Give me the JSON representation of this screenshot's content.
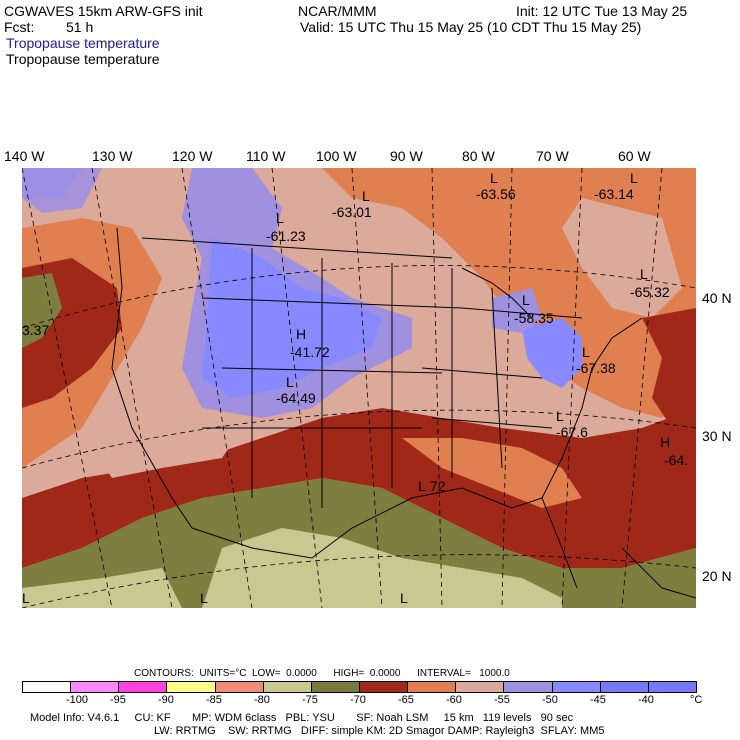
{
  "header": {
    "model_line": "CGWAVES 15km ARW-GFS init",
    "fcst_label": "Fcst:",
    "fcst_value": "51 h",
    "org": "NCAR/MMM",
    "init": "Init: 12 UTC Tue 13 May 25",
    "valid": "Valid: 15 UTC Thu 15 May 25 (10 CDT Thu 15 May 25)",
    "field1": "Tropopause temperature",
    "field2": "Tropopause temperature"
  },
  "longitude_labels": [
    "140 W",
    "130 W",
    "120 W",
    "110 W",
    "100 W",
    "90 W",
    "80 W",
    "70 W",
    "60 W"
  ],
  "latitude_labels": [
    "40 N",
    "30 N",
    "20 N"
  ],
  "map_annotations": [
    {
      "kind": "L",
      "text": "L"
    },
    {
      "kind": "value",
      "text": "-63.01"
    },
    {
      "kind": "L",
      "text": "L"
    },
    {
      "kind": "value",
      "text": "-63.56"
    },
    {
      "kind": "L",
      "text": "L"
    },
    {
      "kind": "value",
      "text": "-63.14"
    },
    {
      "kind": "L",
      "text": "L"
    },
    {
      "kind": "value",
      "text": "-61.23"
    },
    {
      "kind": "L",
      "text": "L"
    },
    {
      "kind": "value",
      "text": "-65.32"
    },
    {
      "kind": "value",
      "text": "3.37"
    },
    {
      "kind": "L",
      "text": "L"
    },
    {
      "kind": "value",
      "text": "-58.35"
    },
    {
      "kind": "H",
      "text": "H"
    },
    {
      "kind": "value",
      "text": "-41.72"
    },
    {
      "kind": "L",
      "text": "L"
    },
    {
      "kind": "value",
      "text": "-67.38"
    },
    {
      "kind": "L",
      "text": "L"
    },
    {
      "kind": "value",
      "text": "-64.49"
    },
    {
      "kind": "L",
      "text": "L"
    },
    {
      "kind": "value",
      "text": "-67.6"
    },
    {
      "kind": "H",
      "text": "H"
    },
    {
      "kind": "value",
      "text": "-64."
    },
    {
      "kind": "L",
      "text": "L"
    },
    {
      "kind": "value",
      "text": "72"
    },
    {
      "kind": "L",
      "text": "L"
    },
    {
      "kind": "L",
      "text": "L"
    },
    {
      "kind": "L",
      "text": "L"
    }
  ],
  "colors": {
    "c_lt_m100": "#ffffff",
    "c_m100_m95": "#ff88ff",
    "c_m95_m90": "#ff44dd",
    "c_m90_m85": "#ffff88",
    "c_m85_m80": "#f08a7a",
    "c_m80_m75": "#c8c890",
    "c_m75_m70": "#7a7a3a",
    "c_m70_m65": "#a02818",
    "c_m65_m60": "#e08050",
    "c_m60_m55": "#dcaa9a",
    "c_m55_m50": "#a090e0",
    "c_m50_m45": "#8888ff",
    "c_m45_m40": "#7878f8",
    "c_olive_land": "#7e7e3e",
    "c_tan": "#c8c890"
  },
  "legend": {
    "contours_line": "CONTOURS:  UNITS=°C  LOW=  0.0000      HIGH=  0.0000      INTERVAL=   1000.0",
    "tick_labels": [
      "-100",
      "-95",
      "-90",
      "-85",
      "-80",
      "-75",
      "-70",
      "-65",
      "-60",
      "-55",
      "-50",
      "-45",
      "-40"
    ],
    "unit": "°C"
  },
  "model_info": {
    "line1": "Model Info: V4.6.1     CU: KF       MP: WDM 6class   PBL: YSU       SF: Noah LSM     15 km   119 levels   90 sec",
    "line2": "LW: RRTMG    SW: RRTMG   DIFF: simple KM: 2D Smagor DAMP: Rayleigh3  SFLAY: MM5"
  }
}
